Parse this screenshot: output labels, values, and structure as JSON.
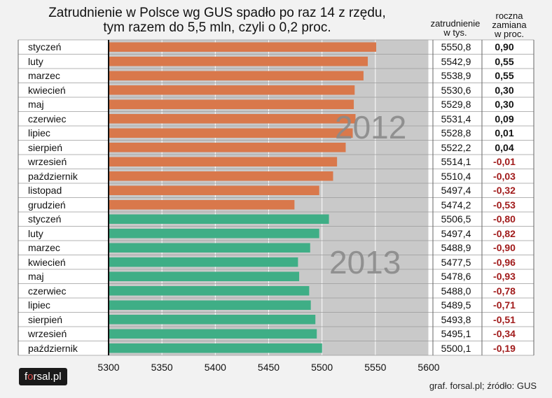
{
  "header": {
    "title_line1": "Zatrudnienie w Polsce wg GUS spadło po raz 14 z rzędu,",
    "title_line2": "tym razem do 5,5 mln, czyli o 0,2 proc.",
    "col_value_line1": "zatrudnienie",
    "col_value_line2": "w tys.",
    "col_change_line1": "roczna",
    "col_change_line2": "zamiana",
    "col_change_line3": "w proc."
  },
  "footer": {
    "logo_f": "f",
    "logo_o": "o",
    "logo_rest": "rsal.pl",
    "source": "graf. forsal.pl; źródło: GUS"
  },
  "colors": {
    "bar_2012": "#d9784b",
    "bar_2013": "#3fae86",
    "positive": "#111111",
    "negative": "#a11b1b",
    "grid": "#ffffff",
    "plot_bg": "#c9c9c9"
  },
  "chart_data": {
    "type": "bar",
    "orientation": "horizontal",
    "xlim": [
      5300,
      5600
    ],
    "xticks": [
      5300,
      5350,
      5400,
      5450,
      5500,
      5550,
      5600
    ],
    "groups": [
      {
        "label": "2012",
        "categories": [
          "styczeń",
          "luty",
          "marzec",
          "kwiecień",
          "maj",
          "czerwiec",
          "lipiec",
          "sierpień",
          "wrzesień",
          "październik",
          "listopad",
          "grudzień"
        ],
        "values": [
          5550.8,
          5542.9,
          5538.9,
          5530.6,
          5529.8,
          5531.4,
          5528.8,
          5522.2,
          5514.1,
          5510.4,
          5497.4,
          5474.2
        ],
        "value_labels": [
          "5550,8",
          "5542,9",
          "5538,9",
          "5530,6",
          "5529,8",
          "5531,4",
          "5528,8",
          "5522,2",
          "5514,1",
          "5510,4",
          "5497,4",
          "5474,2"
        ],
        "changes": [
          "0,90",
          "0,55",
          "0,55",
          "0,30",
          "0,30",
          "0,09",
          "0,01",
          "0,04",
          "-0,01",
          "-0,03",
          "-0,32",
          "-0,53"
        ]
      },
      {
        "label": "2013",
        "categories": [
          "styczeń",
          "luty",
          "marzec",
          "kwiecień",
          "maj",
          "czerwiec",
          "lipiec",
          "sierpień",
          "wrzesień",
          "październik"
        ],
        "values": [
          5506.5,
          5497.4,
          5488.9,
          5477.5,
          5478.6,
          5488.0,
          5489.5,
          5493.8,
          5495.1,
          5500.1
        ],
        "value_labels": [
          "5506,5",
          "5497,4",
          "5488,9",
          "5477,5",
          "5478,6",
          "5488,0",
          "5489,5",
          "5493,8",
          "5495,1",
          "5500,1"
        ],
        "changes": [
          "-0,80",
          "-0,82",
          "-0,90",
          "-0,96",
          "-0,93",
          "-0,78",
          "-0,71",
          "-0,51",
          "-0,34",
          "-0,19"
        ]
      }
    ]
  }
}
